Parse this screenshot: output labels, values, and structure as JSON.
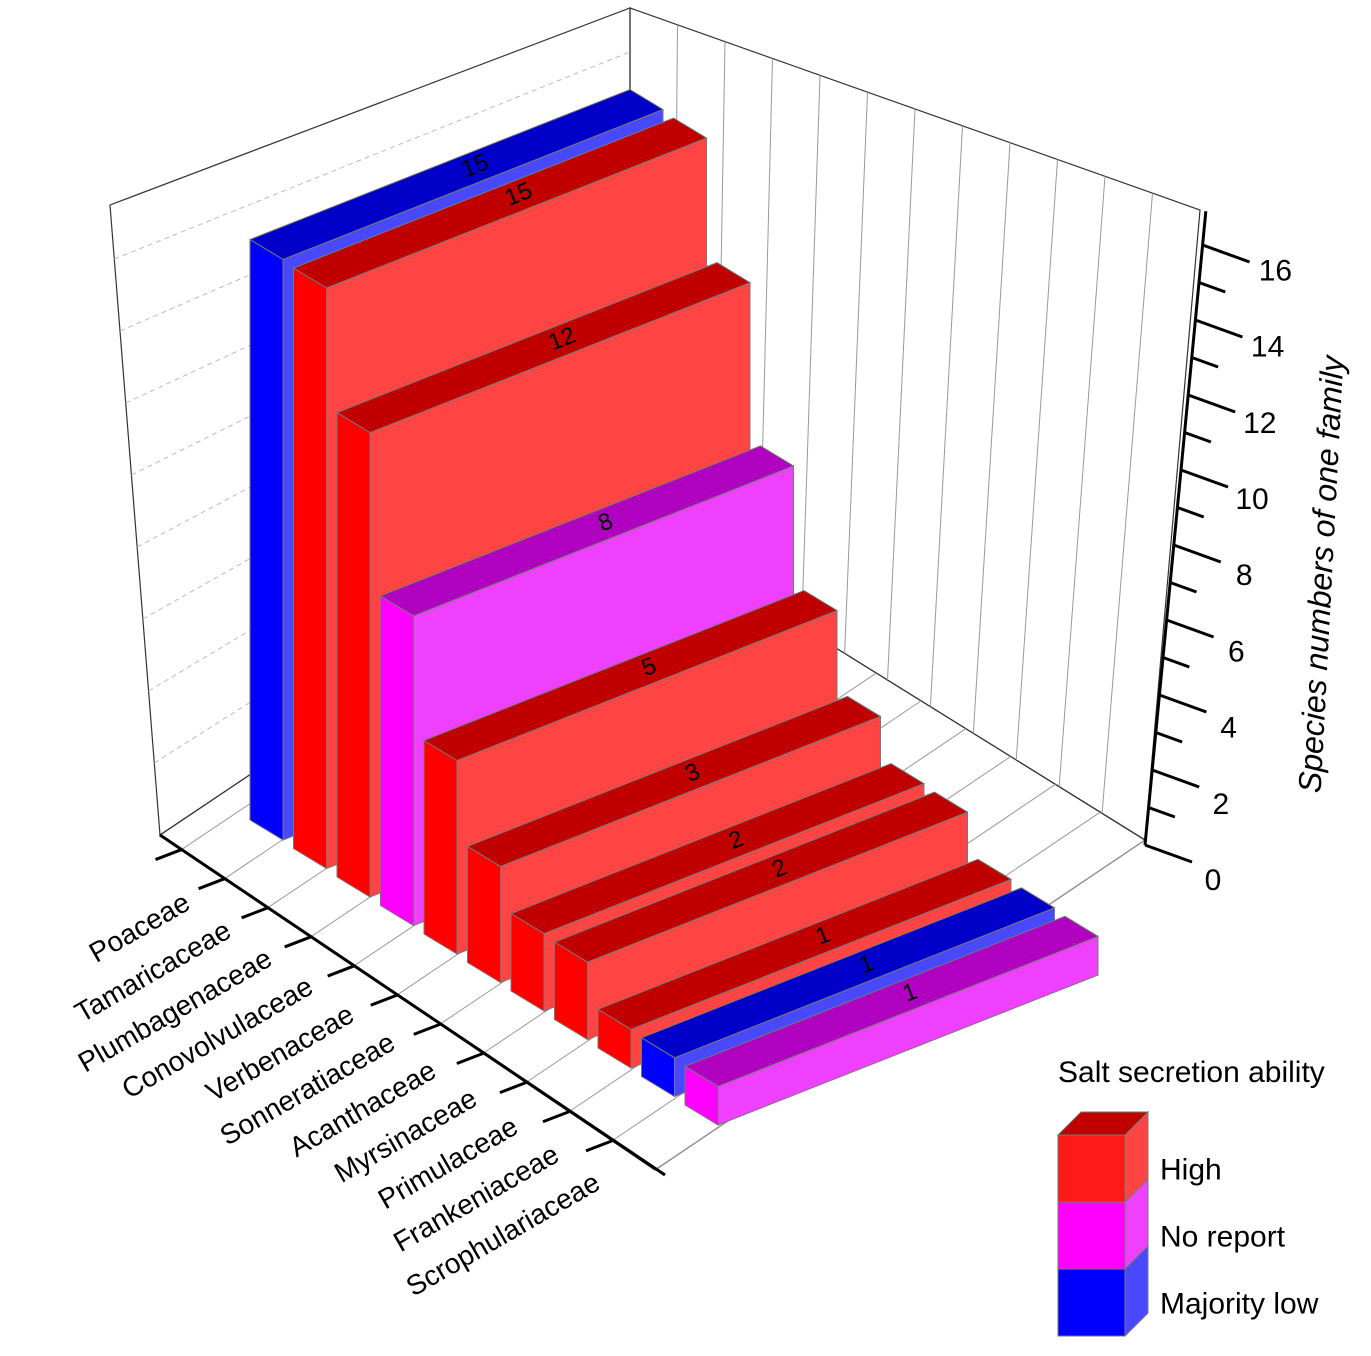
{
  "chart_data": {
    "type": "bar",
    "subtype": "3d-bar",
    "categories": [
      "Poaceae",
      "Tamaricaceae",
      "Plumbagenaceae",
      "Conovolvulaceae",
      "Verbenaceae",
      "Sonneratiaceae",
      "Acanthaceae",
      "Myrsinaceae",
      "Primulaceae",
      "Frankeniaceae",
      "Scrophulariaceae"
    ],
    "values": [
      15,
      15,
      12,
      8,
      5,
      3,
      2,
      2,
      1,
      1,
      1
    ],
    "value_labels": [
      "15",
      "15",
      "12",
      "8",
      "5",
      "3",
      "2",
      "2",
      "1",
      "1",
      "1"
    ],
    "groups": [
      "Majority low",
      "High",
      "High",
      "No report",
      "High",
      "High",
      "High",
      "High",
      "High",
      "Majority low",
      "No report"
    ],
    "ylabel": "Species numbers of one family",
    "xlabel": "",
    "ylim": [
      0,
      17
    ],
    "yticks": [
      "0",
      "2",
      "4",
      "6",
      "8",
      "10",
      "12",
      "14",
      "16"
    ],
    "grid": true,
    "legend": {
      "title": "Salt secretion ability",
      "position": "bottom-right",
      "entries": [
        {
          "label": "High",
          "color": "#ff1a1a"
        },
        {
          "label": "No report",
          "color": "#ff00ff"
        },
        {
          "label": "Majority low",
          "color": "#0000ff"
        }
      ]
    },
    "colors": {
      "High": {
        "front": "#ff0000",
        "side": "#ff4444",
        "top": "#c00000"
      },
      "No report": {
        "front": "#ff00ff",
        "side": "#f040ff",
        "top": "#b000c0"
      },
      "Majority low": {
        "front": "#0000ff",
        "side": "#4848ff",
        "top": "#0000c8"
      }
    }
  }
}
